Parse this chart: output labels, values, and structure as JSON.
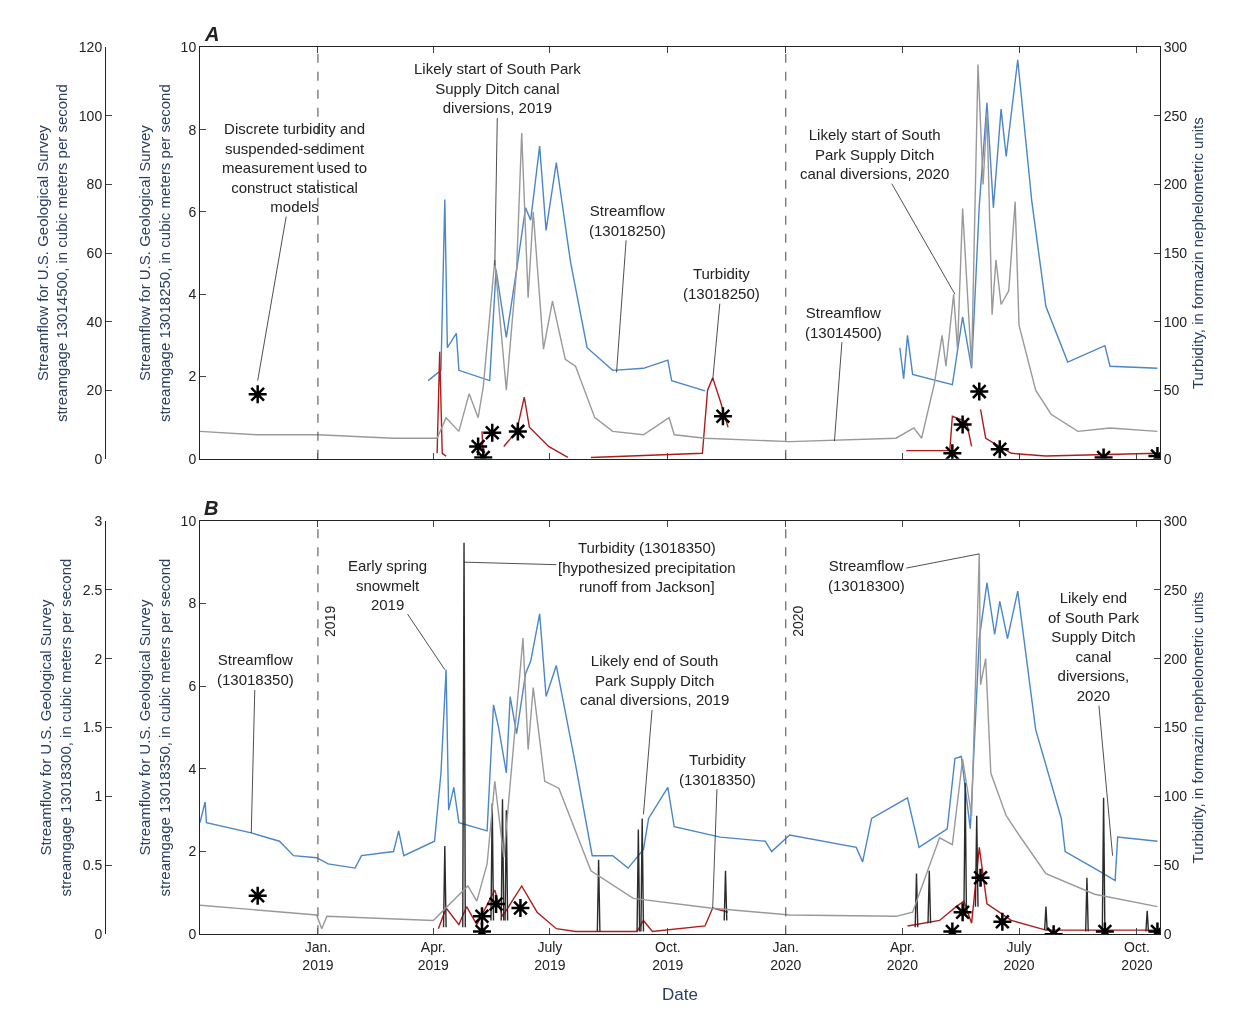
{
  "chart_data": [
    {
      "type": "line",
      "title": "A",
      "ylabel": "Streamflow for U.S. Geological Survey\nstreamgage 13018250, in cubic meters per second",
      "y2label": "Turbidity, in formazin nephelometric units",
      "y3label": "Streamflow for U.S. Geological Survey\nstreamgage 13014500, in cubic meters per second",
      "tick_labels": "y",
      "xlim": [
        "2018-10-01",
        "2020-10-19"
      ],
      "xticks": [
        {
          "value": "2019-01-01",
          "label": null
        },
        {
          "value": "2019-04-01",
          "label": null
        },
        {
          "value": "2019-07-01",
          "label": null
        },
        {
          "value": "2019-10-01",
          "label": null
        },
        {
          "value": "2020-01-01",
          "label": null
        },
        {
          "value": "2020-04-01",
          "label": null
        },
        {
          "value": "2020-07-01",
          "label": null
        },
        {
          "value": "2020-10-01",
          "label": null
        }
      ],
      "ylim": [
        0,
        10
      ],
      "yticks": [
        0,
        2,
        4,
        6,
        8,
        10
      ],
      "y2lim": [
        0,
        300
      ],
      "y2ticks": [
        0,
        50,
        100,
        150,
        200,
        250,
        300
      ],
      "y3lim": [
        0,
        120
      ],
      "y3ticks": [
        0,
        20,
        40,
        60,
        80,
        100,
        120
      ],
      "series": [
        {
          "axis": "y3",
          "color": "#999999",
          "x": [
            "2018-10-01",
            "2018-11-15",
            "2019-01-01",
            "2019-03-01",
            "2019-04-04",
            "2019-04-11",
            "2019-04-21",
            "2019-04-29",
            "2019-05-06",
            "2019-05-10",
            "2019-05-19",
            "2019-05-28",
            "2019-06-05",
            "2019-06-09",
            "2019-06-14",
            "2019-06-18",
            "2019-06-26",
            "2019-07-03",
            "2019-07-13",
            "2019-07-21",
            "2019-08-05",
            "2019-08-19",
            "2019-09-12",
            "2019-10-02",
            "2019-10-06",
            "2019-10-30",
            "2020-01-04",
            "2020-03-27",
            "2020-04-10",
            "2020-04-16",
            "2020-04-26",
            "2020-05-02",
            "2020-05-05",
            "2020-05-11",
            "2020-05-14",
            "2020-05-18",
            "2020-05-25",
            "2020-05-30",
            "2020-06-03",
            "2020-06-06",
            "2020-06-10",
            "2020-06-13",
            "2020-06-17",
            "2020-06-23",
            "2020-06-28",
            "2020-07-01",
            "2020-07-14",
            "2020-07-26",
            "2020-08-16",
            "2020-09-10",
            "2020-10-17"
          ],
          "values": [
            8,
            7,
            7,
            6,
            6,
            12,
            8,
            19,
            12,
            21,
            58,
            20,
            55,
            95,
            47,
            72,
            32,
            46,
            29,
            27,
            12,
            8,
            7,
            12,
            7,
            6,
            5,
            6,
            9,
            6,
            22,
            36,
            27,
            48,
            32,
            73,
            27,
            115,
            80,
            101,
            42,
            58,
            45,
            49,
            75,
            39,
            20,
            13,
            8,
            9,
            8
          ]
        },
        {
          "color": "#4a86c8",
          "x": [
            "2019-03-28",
            "2019-04-07",
            "2019-04-10",
            "2019-04-12",
            "2019-04-19",
            "2019-04-21",
            "2019-05-15",
            "2019-05-20",
            "2019-05-28",
            "2019-06-06",
            "2019-06-12",
            "2019-06-16",
            "2019-06-23",
            "2019-06-28",
            "2019-07-06",
            "2019-07-17",
            "2019-07-30",
            "2019-08-19",
            "2019-09-12",
            "2019-10-01",
            "2019-10-04",
            "2019-10-30",
            "2020-01-15",
            "2020-03-30",
            "2020-04-02",
            "2020-04-05",
            "2020-04-09",
            "2020-05-10",
            "2020-05-18",
            "2020-05-25",
            "2020-05-31",
            "2020-06-06",
            "2020-06-11",
            "2020-06-17",
            "2020-06-21",
            "2020-06-30",
            "2020-07-11",
            "2020-07-22",
            "2020-08-08",
            "2020-09-06",
            "2020-09-10",
            "2020-10-17"
          ],
          "values": [
            1.9,
            2.15,
            6.3,
            2.7,
            3.05,
            2.15,
            1.9,
            4.6,
            2.95,
            4.8,
            6.1,
            5.8,
            7.6,
            5.55,
            7.2,
            4.8,
            2.7,
            2.15,
            2.2,
            2.4,
            1.9,
            1.65,
            null,
            2.7,
            1.95,
            3.0,
            2.05,
            1.8,
            3.45,
            2.2,
            6.15,
            8.65,
            6.1,
            8.5,
            7.35,
            9.7,
            6.25,
            3.7,
            2.35,
            2.75,
            2.25,
            2.2
          ]
        },
        {
          "axis": "y2",
          "color": "#b01c1c",
          "x": [
            "2019-04-04",
            "2019-04-06",
            "2019-04-08",
            "2019-04-11",
            "2019-04-25",
            "2019-05-09",
            "2019-05-10",
            "2019-05-18",
            "2019-05-26",
            "2019-06-05",
            "2019-06-11",
            "2019-06-15",
            "2019-06-30",
            "2019-07-15",
            "2019-07-24",
            "2019-08-02",
            "2019-10-28",
            "2019-11-01",
            "2019-11-05",
            "2019-11-11",
            "2019-11-17",
            "2020-01-15",
            "2020-04-04",
            "2020-05-08",
            "2020-05-10",
            "2020-05-21",
            "2020-05-25",
            "2020-05-28",
            "2020-06-01",
            "2020-06-05",
            "2020-06-25",
            "2020-07-22",
            "2020-10-17"
          ],
          "values": [
            4,
            78,
            4,
            2,
            null,
            20,
            2,
            null,
            9,
            20,
            45,
            23,
            9,
            1,
            null,
            1,
            4,
            50,
            59,
            42,
            23,
            null,
            6,
            6,
            31,
            27,
            9,
            null,
            36,
            15,
            4,
            2,
            4
          ]
        },
        {
          "type": "scatter",
          "axis": "y2",
          "color": "#000000",
          "marker": "cross",
          "x": [
            "2018-11-15",
            "2019-05-06",
            "2019-05-10",
            "2019-05-17",
            "2019-06-06",
            "2019-11-13",
            "2020-05-10",
            "2020-05-18",
            "2020-05-31",
            "2020-06-16",
            "2020-09-05",
            "2020-10-17"
          ],
          "values": [
            47,
            9,
            1,
            19,
            20,
            31,
            4,
            25,
            49,
            7,
            1,
            2
          ]
        }
      ],
      "ref_lines": [
        {
          "axis": "x",
          "value": "2019-01-01",
          "color": "#666666",
          "line_style": "dashed"
        },
        {
          "axis": "x",
          "value": "2020-01-01",
          "color": "#666666",
          "line_style": "dashed"
        }
      ],
      "annotations": [
        {
          "text": "Discrete turbidity and\nsuspended-sediment\nmeasurement used to\nconstruct statistical\nmodels",
          "x": "2018-11-15",
          "y": 1.9
        },
        {
          "text": "Likely start of South Park\nSupply Ditch canal\ndiversions, 2019",
          "x": "2019-05-19",
          "y": 4.7
        },
        {
          "text": "Streamflow\n(13018250)",
          "x": "2019-08-22",
          "y": 2.1
        },
        {
          "text": "Turbidity\n(13018250)",
          "x": "2019-11-05",
          "y": 1.9
        },
        {
          "text": "Streamflow\n(13014500)",
          "x": "2020-02-08",
          "y": 0.43
        },
        {
          "text": "Likely start of South\nPark Supply Ditch\ncanal diversions, 2020",
          "x": "2020-05-12",
          "y": 4.0
        }
      ]
    },
    {
      "type": "line",
      "title": "B",
      "xlabel": "Date",
      "ylabel": "Streamflow for U.S. Geological Survey\nstreamgage 13018350, in cubic meters per second",
      "y2label": "Turbidity, in formazin nephelometric units",
      "y3label": "Streamflow for U.S. Geological Survey\nstreamgage 13018300, in cubic meters per second",
      "xlim": [
        "2018-10-01",
        "2020-10-19"
      ],
      "xticks": [
        {
          "value": "2019-01-01",
          "label": "Jan.\n2019"
        },
        {
          "value": "2019-04-01",
          "label": "Apr.\n2019"
        },
        {
          "value": "2019-07-01",
          "label": "July\n2019"
        },
        {
          "value": "2019-10-01",
          "label": "Oct.\n2019"
        },
        {
          "value": "2020-01-01",
          "label": "Jan.\n2020"
        },
        {
          "value": "2020-04-01",
          "label": "Apr.\n2020"
        },
        {
          "value": "2020-07-01",
          "label": "July\n2020"
        },
        {
          "value": "2020-10-01",
          "label": "Oct.\n2020"
        }
      ],
      "ylim": [
        0,
        10
      ],
      "yticks": [
        0,
        2,
        4,
        6,
        8,
        10
      ],
      "y2lim": [
        0,
        300
      ],
      "y2ticks": [
        0,
        50,
        100,
        150,
        200,
        250,
        300
      ],
      "y3lim": [
        0,
        3
      ],
      "y3ticks": [
        0,
        0.5,
        1,
        1.5,
        2,
        2.5,
        3
      ],
      "series": [
        {
          "axis": "y3",
          "color": "#999999",
          "x": [
            "2018-10-01",
            "2018-12-31",
            "2019-01-04",
            "2019-01-08",
            "2019-04-01",
            "2019-04-28",
            "2019-05-05",
            "2019-05-13",
            "2019-05-19",
            "2019-05-26",
            "2019-06-10",
            "2019-06-14",
            "2019-06-18",
            "2019-06-27",
            "2019-07-08",
            "2019-08-02",
            "2019-09-04",
            "2019-11-03",
            "2020-01-04",
            "2020-03-27",
            "2020-04-09",
            "2020-04-30",
            "2020-05-10",
            "2020-05-18",
            "2020-05-25",
            "2020-05-31",
            "2020-06-01",
            "2020-06-05",
            "2020-06-09",
            "2020-06-21",
            "2020-07-01",
            "2020-07-22",
            "2020-08-29",
            "2020-10-17"
          ],
          "values": [
            0.21,
            0.14,
            0.04,
            0.13,
            0.1,
            0.35,
            0.24,
            0.51,
            1.11,
            0.56,
            2.15,
            1.34,
            1.79,
            1.11,
            1.06,
            0.46,
            0.26,
            0.19,
            0.14,
            0.13,
            0.16,
            0.7,
            0.65,
            1.27,
            0.86,
            2.76,
            1.81,
            2.0,
            1.17,
            0.86,
            0.72,
            0.44,
            0.29,
            0.2
          ]
        },
        {
          "color": "#4a86c8",
          "x": [
            "2018-10-01",
            "2018-10-05",
            "2018-10-06",
            "2018-11-10",
            "2018-12-02",
            "2018-12-13",
            "2018-12-31",
            "2019-01-09",
            "2019-01-30",
            "2019-02-04",
            "2019-03-01",
            "2019-03-05",
            "2019-03-09",
            "2019-04-02",
            "2019-04-07",
            "2019-04-11",
            "2019-04-13",
            "2019-04-17",
            "2019-04-21",
            "2019-05-13",
            "2019-05-18",
            "2019-05-22",
            "2019-05-28",
            "2019-05-31",
            "2019-06-05",
            "2019-06-12",
            "2019-06-16",
            "2019-06-23",
            "2019-06-28",
            "2019-07-06",
            "2019-07-21",
            "2019-08-03",
            "2019-08-19",
            "2019-08-31",
            "2019-09-12",
            "2019-09-16",
            "2019-10-01",
            "2019-10-06",
            "2019-11-11",
            "2019-12-16",
            "2019-12-21",
            "2020-01-04",
            "2020-02-25",
            "2020-03-01",
            "2020-03-08",
            "2020-04-05",
            "2020-04-14",
            "2020-05-06",
            "2020-05-12",
            "2020-05-17",
            "2020-05-24",
            "2020-05-31",
            "2020-06-06",
            "2020-06-12",
            "2020-06-16",
            "2020-06-22",
            "2020-06-30",
            "2020-07-14",
            "2020-08-03",
            "2020-08-06",
            "2020-09-03",
            "2020-09-14",
            "2020-09-16",
            "2020-10-17"
          ],
          "values": [
            2.7,
            3.2,
            2.7,
            2.45,
            2.25,
            1.9,
            1.85,
            1.7,
            1.6,
            1.9,
            2.0,
            2.5,
            1.9,
            2.25,
            3.9,
            6.4,
            3.0,
            3.55,
            2.7,
            2.5,
            5.55,
            5.0,
            3.9,
            5.75,
            4.85,
            6.3,
            6.6,
            7.75,
            5.75,
            6.5,
            4.1,
            1.9,
            1.9,
            1.6,
            2.05,
            2.8,
            3.55,
            2.6,
            2.35,
            2.25,
            2.0,
            2.4,
            2.1,
            1.75,
            2.8,
            3.3,
            2.1,
            2.55,
            4.25,
            4.3,
            2.55,
            7.15,
            8.5,
            7.25,
            8.05,
            7.15,
            8.3,
            4.95,
            2.8,
            2.0,
            1.5,
            1.3,
            2.35,
            2.25
          ]
        },
        {
          "axis": "y2",
          "color": "#b01c1c",
          "x": [
            "2019-04-05",
            "2019-04-11",
            "2019-04-21",
            "2019-04-27",
            "2019-05-05",
            "2019-05-19",
            "2019-05-25",
            "2019-06-09",
            "2019-06-21",
            "2019-07-06",
            "2019-07-21",
            "2019-09-07",
            "2019-09-12",
            "2019-09-19",
            "2019-10-30",
            "2019-11-05",
            "2019-11-17",
            "2020-01-15",
            "2020-04-05",
            "2020-04-30",
            "2020-05-13",
            "2020-05-19",
            "2020-05-25",
            "2020-05-31",
            "2020-06-06",
            "2020-06-25",
            "2020-07-22",
            "2020-10-17"
          ],
          "values": [
            4,
            19,
            7,
            20,
            7,
            32,
            13,
            35,
            16,
            4,
            2,
            2,
            10,
            2,
            6,
            19,
            16,
            null,
            6,
            10,
            20,
            24,
            8,
            63,
            22,
            10,
            3,
            3
          ]
        },
        {
          "axis": "y2",
          "color": "#2b2b2b",
          "x": [
            "2019-04-09",
            "2019-04-10",
            "2019-04-11",
            "2019-04-12",
            "2019-04-24",
            "2019-04-25",
            "2019-04-26",
            "2019-04-27",
            "2019-05-16",
            "2019-05-17",
            "2019-05-18",
            "2019-05-19",
            "2019-05-24",
            "2019-05-25",
            "2019-05-26",
            "2019-05-26T12:00",
            "2019-05-27",
            "2019-05-28",
            "2019-05-29",
            "2019-05-30",
            "2019-08-07",
            "2019-08-08",
            "2019-08-09",
            "2019-08-10",
            "2019-09-07",
            "2019-09-08",
            "2019-09-09",
            "2019-09-09T12:00",
            "2019-09-10",
            "2019-09-11",
            "2019-09-12",
            "2019-09-13",
            "2019-11-14",
            "2019-11-15",
            "2019-11-16",
            "2020-01-15",
            "2020-04-11",
            "2020-04-12",
            "2020-04-13",
            "2020-04-14",
            "2020-04-21",
            "2020-04-22",
            "2020-04-23",
            "2020-04-24",
            "2020-05-19",
            "2020-05-20",
            "2020-05-21",
            "2020-05-22",
            "2020-05-28",
            "2020-05-29",
            "2020-05-30",
            "2020-05-31",
            "2020-07-21",
            "2020-07-22",
            "2020-07-23",
            "2020-07-24",
            "2020-08-22",
            "2020-08-23",
            "2020-08-24",
            "2020-08-25",
            "2020-09-04",
            "2020-09-05",
            "2020-09-06",
            "2020-09-07",
            "2020-10-08",
            "2020-10-09",
            "2020-10-10"
          ],
          "values": [
            5,
            64,
            5,
            null,
            5,
            284,
            5,
            null,
            10,
            95,
            10,
            null,
            10,
            98,
            10,
            null,
            10,
            90,
            10,
            null,
            2,
            54,
            2,
            null,
            2,
            76,
            2,
            null,
            2,
            84,
            2,
            null,
            10,
            46,
            10,
            null,
            5,
            44,
            5,
            null,
            8,
            46,
            8,
            null,
            15,
            110,
            15,
            null,
            20,
            86,
            20,
            null,
            3,
            20,
            3,
            null,
            2,
            41,
            2,
            null,
            2,
            99,
            2,
            null,
            2,
            17,
            2
          ]
        },
        {
          "type": "scatter",
          "axis": "y2",
          "color": "#000000",
          "marker": "cross",
          "x": [
            "2018-11-15",
            "2019-05-09",
            "2019-05-09",
            "2019-05-20",
            "2019-06-08",
            "2020-05-10",
            "2020-05-18",
            "2020-06-01",
            "2020-06-18",
            "2020-07-28",
            "2020-09-06",
            "2020-10-17"
          ],
          "values": [
            28,
            13,
            2,
            22,
            19,
            2,
            16,
            41,
            9,
            0,
            2,
            2
          ]
        }
      ],
      "ref_lines": [
        {
          "axis": "x",
          "value": "2019-01-01",
          "label": "2019",
          "color": "#666666",
          "line_style": "dashed"
        },
        {
          "axis": "x",
          "value": "2020-01-01",
          "label": "2020",
          "color": "#666666",
          "line_style": "dashed"
        }
      ],
      "annotations": [
        {
          "text": "Streamflow\n(13018350)",
          "x": "2018-11-10",
          "y": 2.45
        },
        {
          "text": "Early spring\nsnowmelt\n2019",
          "x": "2019-04-10",
          "y": 6.4
        },
        {
          "text": "Turbidity (13018350)\n[hypothesized precipitation\nrunoff from Jackson]",
          "x": "2019-04-25",
          "y": 9.0
        },
        {
          "text": "Likely end of South\nPark Supply Ditch\ncanal diversions, 2019",
          "x": "2019-09-12",
          "y": 2.9
        },
        {
          "text": "Turbidity\n(13018350)",
          "x": "2019-11-05",
          "y": 0.63
        },
        {
          "text": "Streamflow\n(13018300)",
          "x": "2020-05-31",
          "y": 9.2
        },
        {
          "text": "Likely end\nof South Park\nSupply Ditch\ncanal\ndiversions,\n2020",
          "x": "2020-09-12",
          "y": 1.9
        }
      ]
    }
  ]
}
